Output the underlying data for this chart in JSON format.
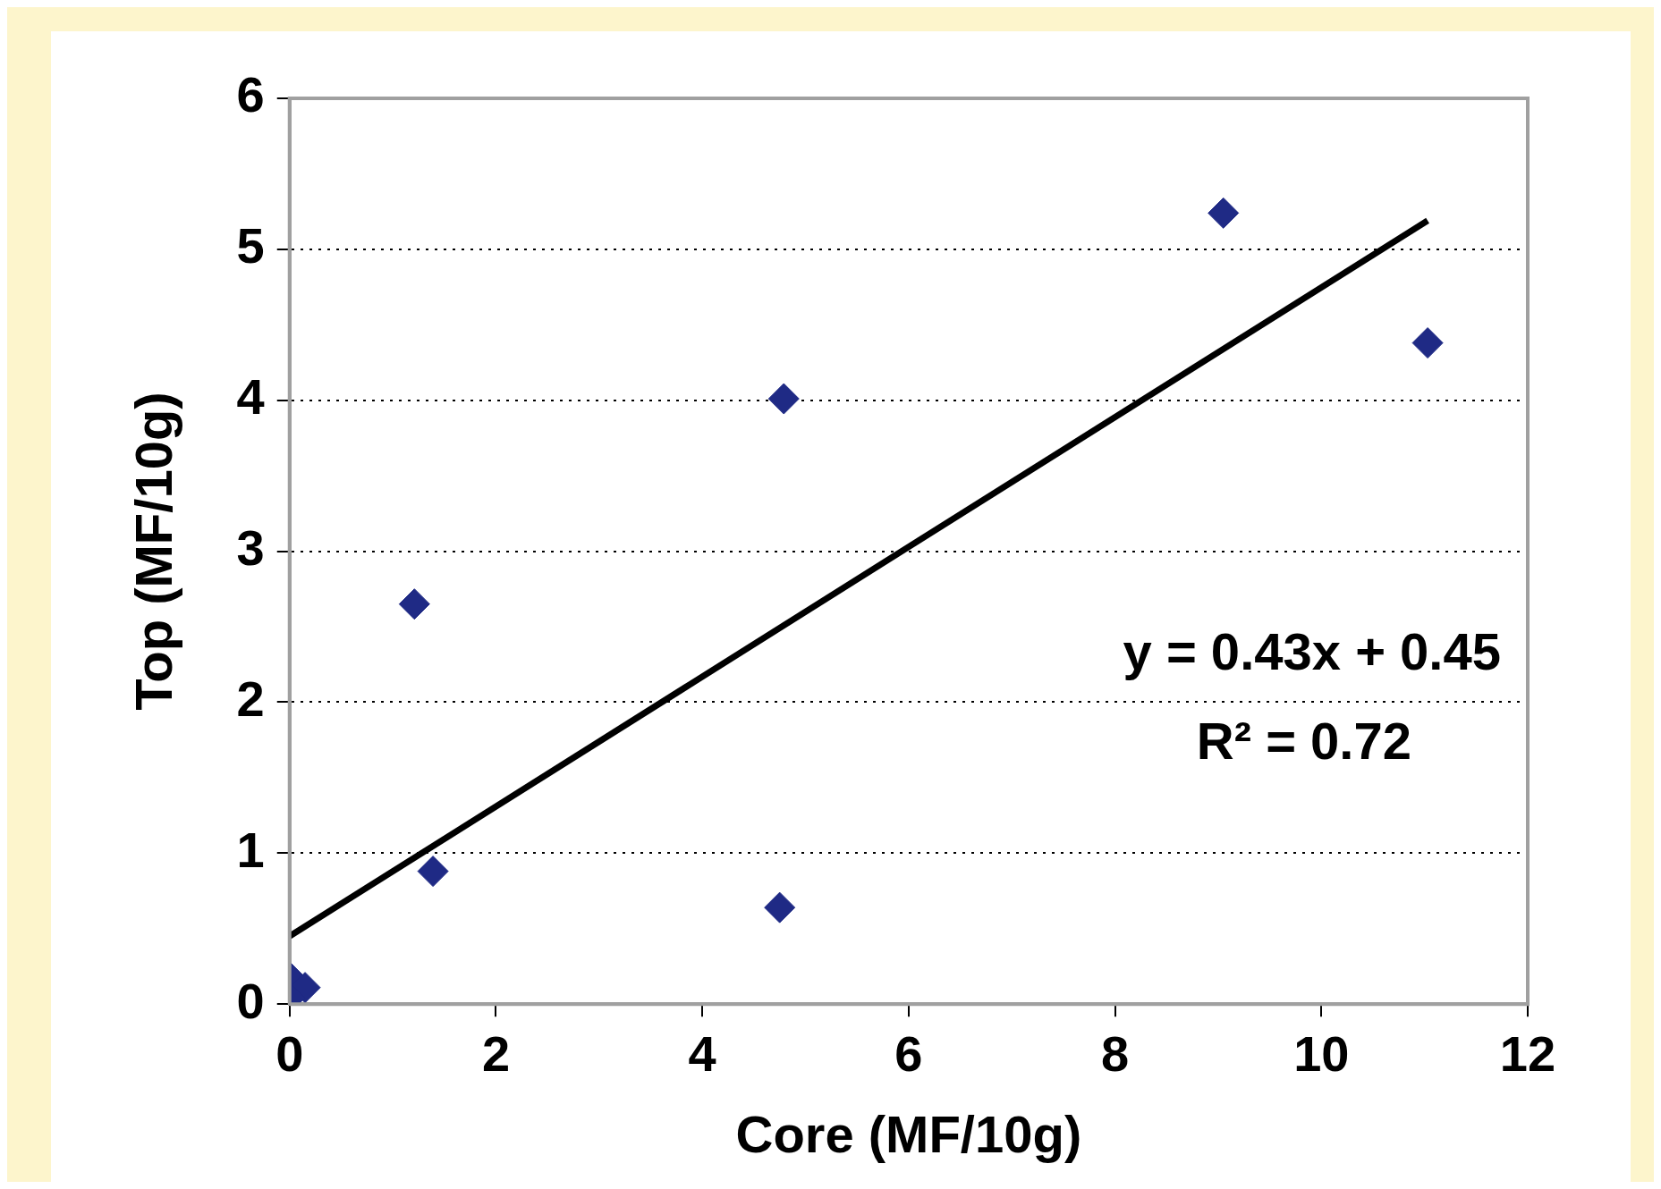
{
  "chart_data": {
    "type": "scatter",
    "xlabel": "Core (MF/10g)",
    "ylabel": "Top (MF/10g)",
    "xlim": [
      0,
      12
    ],
    "xticks": [
      0,
      2,
      4,
      6,
      8,
      10,
      12
    ],
    "ylim": [
      0,
      6
    ],
    "yticks": [
      0,
      1,
      2,
      3,
      4,
      5,
      6
    ],
    "grid": "y",
    "legend": false,
    "marker": "diamond",
    "series": [
      {
        "type": "scatter",
        "color": "#1f2a85",
        "x": [
          0,
          0.15,
          0,
          1.21,
          1.39,
          4.75,
          4.79,
          9.05,
          11.03
        ],
        "values": [
          0.18,
          0.11,
          0.04,
          2.65,
          0.88,
          0.64,
          4.01,
          5.24,
          4.38
        ]
      },
      {
        "type": "line",
        "color": "#000000",
        "marker": "none",
        "line_style": "solid",
        "x": [
          0,
          11.03
        ],
        "values": [
          0.45,
          5.19
        ]
      }
    ],
    "annotations": [
      "y = 0.43x + 0.45",
      "R² = 0.72"
    ]
  }
}
